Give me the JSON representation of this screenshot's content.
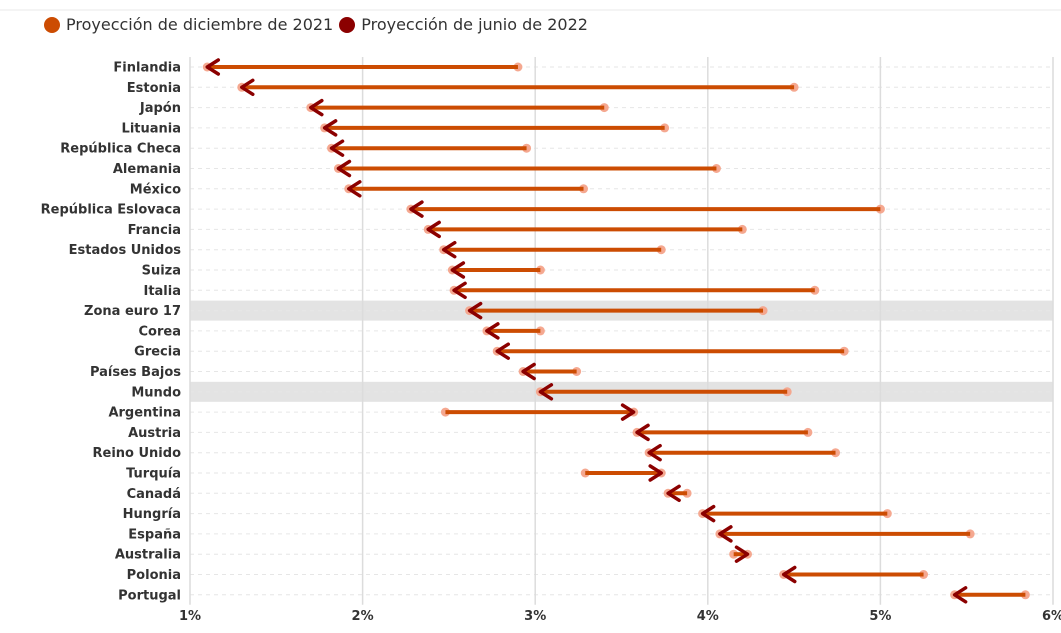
{
  "chart_data": {
    "type": "dumbbell-arrow",
    "legend": [
      {
        "name": "Proyección de diciembre de 2021",
        "color": "#cc4c02"
      },
      {
        "name": "Proyección de junio de 2022",
        "color": "#8b0000"
      }
    ],
    "x_ticks": [
      "1%",
      "2%",
      "3%",
      "4%",
      "5%",
      "6%"
    ],
    "x_tick_values": [
      1,
      2,
      3,
      4,
      5,
      6
    ],
    "xlim": [
      1,
      6
    ],
    "highlight": [
      "Zona euro 17",
      "Mundo"
    ],
    "rows": [
      {
        "name": "Finlandia",
        "dec2021": 2.9,
        "jun2022": 1.1
      },
      {
        "name": "Estonia",
        "dec2021": 4.5,
        "jun2022": 1.3
      },
      {
        "name": "Japón",
        "dec2021": 3.4,
        "jun2022": 1.7
      },
      {
        "name": "Lituania",
        "dec2021": 3.75,
        "jun2022": 1.78
      },
      {
        "name": "República Checa",
        "dec2021": 2.95,
        "jun2022": 1.82
      },
      {
        "name": "Alemania",
        "dec2021": 4.05,
        "jun2022": 1.86
      },
      {
        "name": "México",
        "dec2021": 3.28,
        "jun2022": 1.92
      },
      {
        "name": "República Eslovaca",
        "dec2021": 5.0,
        "jun2022": 2.28
      },
      {
        "name": "Francia",
        "dec2021": 4.2,
        "jun2022": 2.38
      },
      {
        "name": "Estados Unidos",
        "dec2021": 3.73,
        "jun2022": 2.47
      },
      {
        "name": "Suiza",
        "dec2021": 3.03,
        "jun2022": 2.52
      },
      {
        "name": "Italia",
        "dec2021": 4.62,
        "jun2022": 2.53
      },
      {
        "name": "Zona euro 17",
        "dec2021": 4.32,
        "jun2022": 2.62
      },
      {
        "name": "Corea",
        "dec2021": 3.03,
        "jun2022": 2.72
      },
      {
        "name": "Grecia",
        "dec2021": 4.79,
        "jun2022": 2.78
      },
      {
        "name": "Países Bajos",
        "dec2021": 3.24,
        "jun2022": 2.93
      },
      {
        "name": "Mundo",
        "dec2021": 4.46,
        "jun2022": 3.03
      },
      {
        "name": "Argentina",
        "dec2021": 2.48,
        "jun2022": 3.57
      },
      {
        "name": "Austria",
        "dec2021": 4.58,
        "jun2022": 3.59
      },
      {
        "name": "Reino Unido",
        "dec2021": 4.74,
        "jun2022": 3.66
      },
      {
        "name": "Turquía",
        "dec2021": 3.29,
        "jun2022": 3.73
      },
      {
        "name": "Canadá",
        "dec2021": 3.88,
        "jun2022": 3.77
      },
      {
        "name": "Hungría",
        "dec2021": 5.04,
        "jun2022": 3.97
      },
      {
        "name": "España",
        "dec2021": 5.52,
        "jun2022": 4.07
      },
      {
        "name": "Australia",
        "dec2021": 4.15,
        "jun2022": 4.23
      },
      {
        "name": "Polonia",
        "dec2021": 5.25,
        "jun2022": 4.44
      },
      {
        "name": "Portugal",
        "dec2021": 5.84,
        "jun2022": 5.43
      }
    ]
  }
}
